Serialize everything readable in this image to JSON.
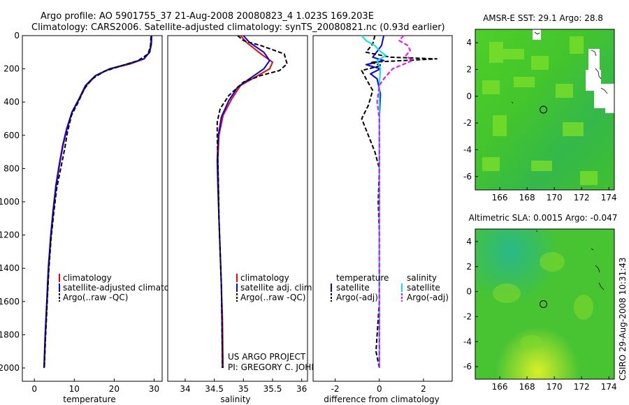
{
  "header": {
    "title_line1": "Argo profile: AO 5901755_37 21-Aug-2008 20080823_4 1.023S 169.203E",
    "title_line2": "Climatology: CARS2006. Satellite-adjusted climatology: synTS_20080821.nc (0.93d earlier)"
  },
  "side_label": "CSIRO 29-Aug-2008 10:31:43",
  "project": {
    "line1": "US ARGO PROJECT",
    "line2": "PI: GREGORY C. JOHNSON"
  },
  "colors": {
    "climatology": "#ff0000",
    "satellite": "#0000ff",
    "argo": "#000000",
    "sat_sal": "#00e5ee",
    "argo_sal": "#ff00ff"
  },
  "chart_data": [
    {
      "type": "line",
      "id": "temperature",
      "xlabel": "temperature",
      "ylabel": "",
      "xlim": [
        -3,
        32
      ],
      "ylim": [
        2080,
        0
      ],
      "xticks": [
        0,
        10,
        20,
        30
      ],
      "yticks": [
        0,
        200,
        400,
        600,
        800,
        1000,
        1200,
        1400,
        1600,
        1800,
        2000
      ],
      "legend": [
        "climatology",
        "satellite-adjusted climatology",
        "Argo(..raw -QC)"
      ],
      "series": [
        {
          "name": "climatology",
          "color": "#ff0000",
          "dash": "",
          "points": [
            [
              29.3,
              0
            ],
            [
              29.2,
              50
            ],
            [
              28.8,
              100
            ],
            [
              27.5,
              140
            ],
            [
              24,
              170
            ],
            [
              19,
              200
            ],
            [
              15.5,
              240
            ],
            [
              13,
              300
            ],
            [
              11.3,
              380
            ],
            [
              9.5,
              460
            ],
            [
              8.2,
              560
            ],
            [
              7.2,
              660
            ],
            [
              6.3,
              780
            ],
            [
              5.5,
              900
            ],
            [
              4.8,
              1050
            ],
            [
              4.2,
              1200
            ],
            [
              3.6,
              1400
            ],
            [
              3.2,
              1600
            ],
            [
              2.8,
              1800
            ],
            [
              2.5,
              2000
            ]
          ]
        },
        {
          "name": "satellite-adjusted climatology",
          "color": "#0000ff",
          "dash": "",
          "points": [
            [
              29.4,
              0
            ],
            [
              29.3,
              50
            ],
            [
              28.9,
              100
            ],
            [
              27.4,
              140
            ],
            [
              23.5,
              170
            ],
            [
              18.8,
              200
            ],
            [
              15.3,
              240
            ],
            [
              12.8,
              300
            ],
            [
              11.2,
              380
            ],
            [
              9.4,
              460
            ],
            [
              8.1,
              560
            ],
            [
              7.1,
              660
            ],
            [
              6.2,
              780
            ],
            [
              5.4,
              900
            ],
            [
              4.7,
              1050
            ],
            [
              4.1,
              1200
            ],
            [
              3.5,
              1400
            ],
            [
              3.1,
              1600
            ],
            [
              2.7,
              1800
            ],
            [
              2.4,
              2000
            ]
          ]
        },
        {
          "name": "Argo(..raw -QC)",
          "color": "#000000",
          "dash": "6,3",
          "points": [
            [
              29.2,
              5
            ],
            [
              29.1,
              60
            ],
            [
              28.5,
              110
            ],
            [
              26,
              150
            ],
            [
              22,
              180
            ],
            [
              17.5,
              215
            ],
            [
              14.5,
              260
            ],
            [
              12.5,
              320
            ],
            [
              11,
              400
            ],
            [
              9.3,
              480
            ],
            [
              8.3,
              580
            ],
            [
              7.6,
              680
            ],
            [
              6.6,
              800
            ],
            [
              5.6,
              920
            ],
            [
              4.9,
              1060
            ],
            [
              4.2,
              1220
            ],
            [
              3.6,
              1420
            ],
            [
              3.2,
              1620
            ],
            [
              2.8,
              1820
            ],
            [
              2.5,
              2000
            ]
          ]
        }
      ]
    },
    {
      "type": "line",
      "id": "salinity",
      "xlabel": "salinity",
      "xlim": [
        33.7,
        36.1
      ],
      "ylim": [
        2080,
        0
      ],
      "xticks": [
        34,
        34.5,
        35,
        35.5,
        36
      ],
      "legend": [
        "climatology",
        "satellite adj. clim.",
        "Argo(..raw -QC)"
      ],
      "series": [
        {
          "name": "climatology",
          "color": "#ff0000",
          "dash": "",
          "points": [
            [
              34.95,
              0
            ],
            [
              35.05,
              40
            ],
            [
              35.3,
              110
            ],
            [
              35.5,
              160
            ],
            [
              35.45,
              200
            ],
            [
              35.2,
              250
            ],
            [
              34.95,
              300
            ],
            [
              34.8,
              380
            ],
            [
              34.65,
              480
            ],
            [
              34.58,
              600
            ],
            [
              34.56,
              750
            ],
            [
              34.57,
              900
            ],
            [
              34.58,
              1100
            ],
            [
              34.6,
              1300
            ],
            [
              34.62,
              1500
            ],
            [
              34.64,
              1700
            ],
            [
              34.65,
              2000
            ]
          ]
        },
        {
          "name": "satellite adj. clim.",
          "color": "#0000ff",
          "dash": "",
          "points": [
            [
              35.0,
              0
            ],
            [
              35.1,
              40
            ],
            [
              35.35,
              100
            ],
            [
              35.45,
              150
            ],
            [
              35.35,
              200
            ],
            [
              35.1,
              260
            ],
            [
              34.9,
              310
            ],
            [
              34.75,
              390
            ],
            [
              34.62,
              490
            ],
            [
              34.57,
              600
            ],
            [
              34.55,
              750
            ],
            [
              34.56,
              900
            ],
            [
              34.58,
              1100
            ],
            [
              34.6,
              1300
            ],
            [
              34.62,
              1500
            ],
            [
              34.63,
              1700
            ],
            [
              34.64,
              2000
            ]
          ]
        },
        {
          "name": "Argo(..raw -QC)",
          "color": "#000000",
          "dash": "6,3",
          "points": [
            [
              34.9,
              0
            ],
            [
              35.0,
              30
            ],
            [
              35.3,
              60
            ],
            [
              35.5,
              85
            ],
            [
              35.7,
              110
            ],
            [
              35.75,
              170
            ],
            [
              35.62,
              210
            ],
            [
              35.3,
              240
            ],
            [
              35.0,
              280
            ],
            [
              34.75,
              360
            ],
            [
              34.6,
              440
            ],
            [
              34.55,
              520
            ],
            [
              34.55,
              600
            ],
            [
              34.56,
              750
            ],
            [
              34.57,
              900
            ],
            [
              34.58,
              1100
            ],
            [
              34.6,
              1300
            ],
            [
              34.62,
              1500
            ],
            [
              34.63,
              1700
            ],
            [
              34.64,
              2000
            ]
          ]
        }
      ]
    },
    {
      "type": "line",
      "id": "difference",
      "xlabel": "difference from climatology",
      "xlim": [
        -3,
        3.3
      ],
      "ylim": [
        2080,
        0
      ],
      "xticks": [
        -2,
        0,
        2
      ],
      "legend_title_left": "temperature",
      "legend_title_right": "salinity",
      "legend": [
        "satellite",
        "Argo(-adj)",
        "satellite",
        "Argo(-adj)"
      ],
      "series": [
        {
          "name": "temperature satellite",
          "color": "#0000ff",
          "dash": "",
          "points": [
            [
              0.2,
              0
            ],
            [
              0.1,
              60
            ],
            [
              -0.3,
              130
            ],
            [
              0.2,
              150
            ],
            [
              -0.6,
              175
            ],
            [
              0.05,
              200
            ],
            [
              -0.4,
              230
            ],
            [
              -0.1,
              260
            ],
            [
              0.05,
              350
            ],
            [
              0,
              500
            ],
            [
              0,
              800
            ],
            [
              0,
              1200
            ],
            [
              0,
              1600
            ],
            [
              0,
              2000
            ]
          ]
        },
        {
          "name": "temperature Argo(-adj)",
          "color": "#000000",
          "dash": "6,3",
          "points": [
            [
              -0.2,
              0
            ],
            [
              -0.3,
              50
            ],
            [
              -0.6,
              100
            ],
            [
              0.5,
              130
            ],
            [
              2.6,
              140
            ],
            [
              -0.4,
              160
            ],
            [
              0.1,
              180
            ],
            [
              -0.8,
              210
            ],
            [
              -0.6,
              260
            ],
            [
              -0.3,
              330
            ],
            [
              -0.5,
              420
            ],
            [
              -0.8,
              500
            ],
            [
              -0.5,
              600
            ],
            [
              -0.2,
              700
            ],
            [
              0,
              800
            ],
            [
              -0.05,
              1000
            ],
            [
              0,
              1200
            ],
            [
              0,
              1400
            ],
            [
              0,
              1600
            ],
            [
              -0.1,
              1800
            ],
            [
              -0.15,
              1900
            ],
            [
              0,
              2000
            ]
          ]
        },
        {
          "name": "salinity satellite",
          "color": "#00e5ee",
          "dash": "",
          "points": [
            [
              -0.8,
              0
            ],
            [
              -0.6,
              30
            ],
            [
              -0.2,
              60
            ],
            [
              0,
              90
            ],
            [
              0.3,
              120
            ],
            [
              -0.1,
              150
            ],
            [
              0.05,
              200
            ],
            [
              0,
              300
            ],
            [
              0,
              500
            ],
            [
              0,
              800
            ],
            [
              0,
              1200
            ],
            [
              0,
              1600
            ],
            [
              0,
              2000
            ]
          ]
        },
        {
          "name": "salinity Argo(-adj)",
          "color": "#ff00ff",
          "dash": "6,3",
          "points": [
            [
              1.1,
              0
            ],
            [
              0.9,
              30
            ],
            [
              1.3,
              60
            ],
            [
              1.4,
              90
            ],
            [
              1.2,
              120
            ],
            [
              1.5,
              150
            ],
            [
              0.6,
              200
            ],
            [
              0.2,
              260
            ],
            [
              0,
              300
            ],
            [
              -0.1,
              400
            ],
            [
              0,
              500
            ],
            [
              0,
              600
            ],
            [
              0,
              800
            ],
            [
              0,
              1000
            ],
            [
              0,
              1200
            ],
            [
              0,
              1600
            ],
            [
              0,
              2000
            ]
          ]
        }
      ]
    },
    {
      "type": "heatmap",
      "id": "sst",
      "title": "AMSR-E SST: 29.1 Argo: 28.8",
      "xlim": [
        164.2,
        174.4
      ],
      "ylim": [
        -7,
        5
      ],
      "xticks": [
        166,
        168,
        170,
        172,
        174
      ],
      "yticks": [
        -6,
        -4,
        -2,
        0,
        2,
        4
      ],
      "marker": [
        169.2,
        -1.0
      ]
    },
    {
      "type": "heatmap",
      "id": "sla",
      "title": "Altimetric SLA: 0.0015 Argo: -0.047",
      "xlim": [
        164.2,
        174.4
      ],
      "ylim": [
        -7,
        5
      ],
      "xticks": [
        166,
        168,
        170,
        172,
        174
      ],
      "yticks": [
        -6,
        -4,
        -2,
        0,
        2,
        4
      ],
      "marker": [
        169.2,
        -1.0
      ]
    }
  ]
}
